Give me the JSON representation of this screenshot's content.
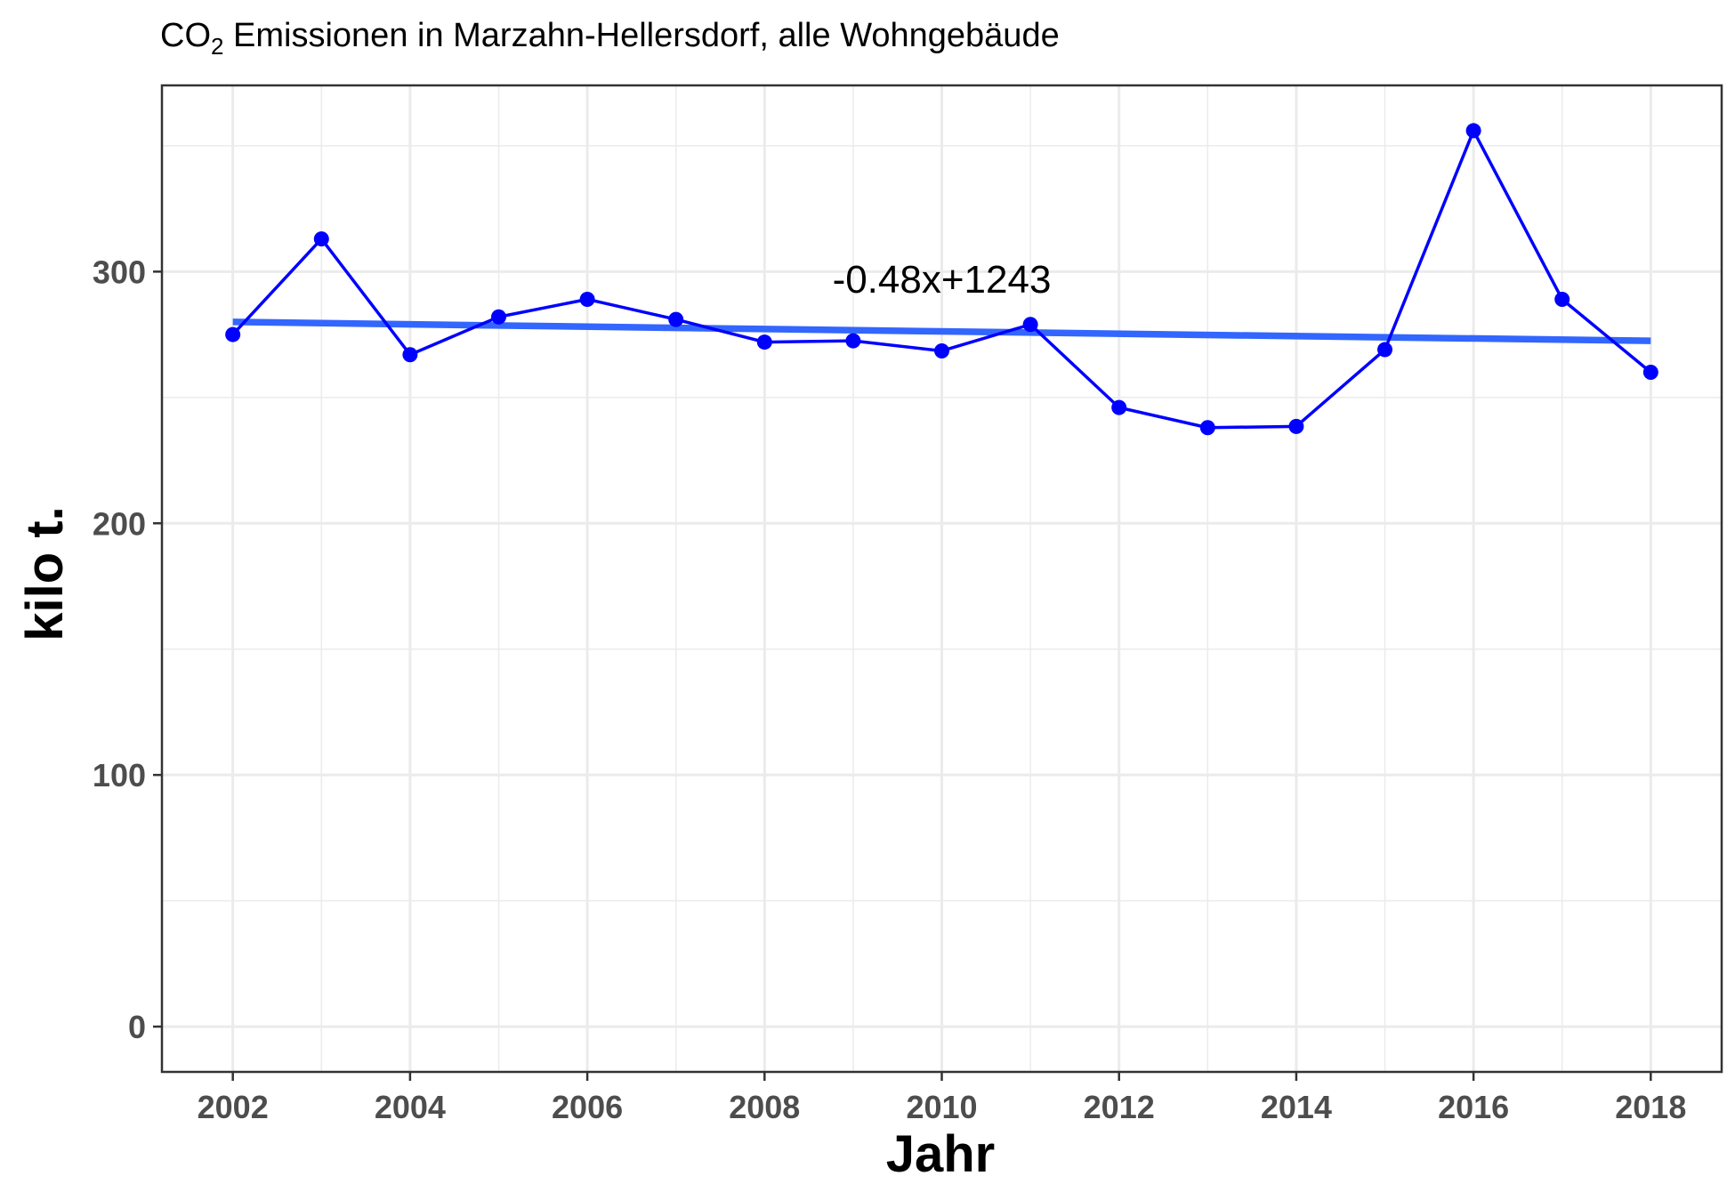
{
  "chart_data": {
    "type": "line",
    "title_prefix": "CO",
    "title_subscript": "2",
    "title_rest": " Emissionen in Marzahn-Hellersdorf, alle Wohngebäude",
    "xlabel": "Jahr",
    "ylabel": "kilo t.",
    "x": [
      2002,
      2003,
      2004,
      2005,
      2006,
      2007,
      2008,
      2009,
      2010,
      2011,
      2012,
      2013,
      2014,
      2015,
      2016,
      2017,
      2018
    ],
    "series": [
      {
        "values": [
          275,
          313,
          267,
          282,
          289,
          281,
          272,
          272.5,
          268.5,
          279,
          246,
          238,
          238.5,
          269,
          356,
          289,
          260
        ],
        "color": "#0000ff"
      }
    ],
    "trend": {
      "label": "-0.48x+1243",
      "x": [
        2002,
        2018
      ],
      "y": [
        280,
        272.5
      ],
      "color": "#3366ff"
    },
    "annotation_position": {
      "x": 2010,
      "y": 297
    },
    "xlim": [
      2001.2,
      2018.8
    ],
    "ylim": [
      -18,
      374
    ],
    "x_ticks": [
      2002,
      2004,
      2006,
      2008,
      2010,
      2012,
      2014,
      2016,
      2018
    ],
    "x_tick_labels": [
      "2002",
      "2004",
      "2006",
      "2008",
      "2010",
      "2012",
      "2014",
      "2016",
      "2018"
    ],
    "y_ticks": [
      0,
      100,
      200,
      300
    ],
    "y_tick_labels": [
      "0",
      "100",
      "200",
      "300"
    ],
    "grid": true,
    "grid_color": "#ebebeb",
    "panel_border_color": "#333333"
  }
}
